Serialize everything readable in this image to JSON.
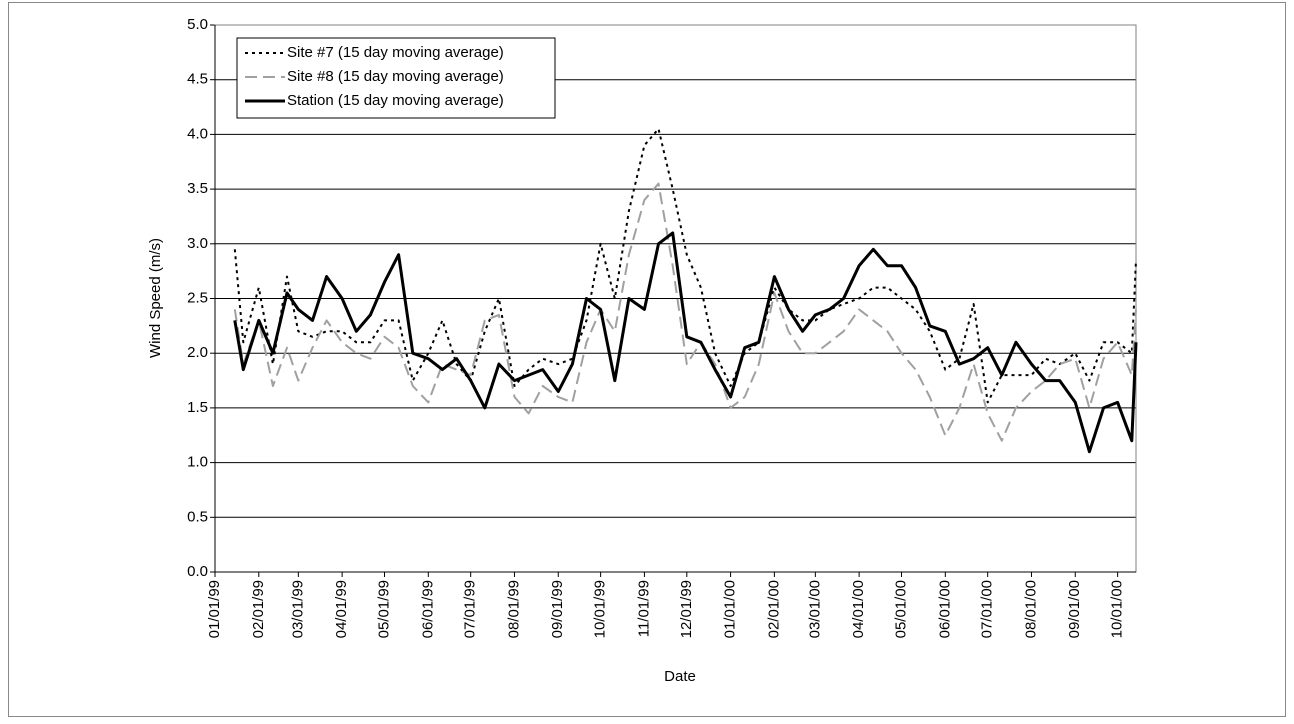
{
  "chart_data": {
    "type": "line",
    "x_label": "Date",
    "y_label": "Wind Speed (m/s)",
    "x": [
      "01/15/99",
      "01/21/99",
      "02/01/99",
      "02/11/99",
      "02/21/99",
      "03/01/99",
      "03/11/99",
      "03/21/99",
      "04/01/99",
      "04/11/99",
      "04/21/99",
      "05/01/99",
      "05/11/99",
      "05/21/99",
      "06/01/99",
      "06/11/99",
      "06/21/99",
      "07/01/99",
      "07/11/99",
      "07/21/99",
      "08/01/99",
      "08/11/99",
      "08/21/99",
      "09/01/99",
      "09/11/99",
      "09/21/99",
      "10/01/99",
      "10/11/99",
      "10/21/99",
      "11/01/99",
      "11/11/99",
      "11/21/99",
      "12/01/99",
      "12/11/99",
      "12/21/99",
      "01/01/00",
      "01/11/00",
      "01/21/00",
      "02/01/00",
      "02/11/00",
      "02/21/00",
      "03/01/00",
      "03/11/00",
      "03/21/00",
      "04/01/00",
      "04/11/00",
      "04/21/00",
      "05/01/00",
      "05/11/00",
      "05/21/00",
      "06/01/00",
      "06/11/00",
      "06/21/00",
      "07/01/00",
      "07/11/00",
      "07/21/00",
      "08/01/00",
      "08/11/00",
      "08/21/00",
      "09/01/00",
      "09/11/00",
      "09/21/00",
      "10/01/00",
      "10/11/00",
      "10/14/00"
    ],
    "series": [
      {
        "name": "Site #7 (15 day moving average)",
        "color": "#000000",
        "dash": "dotted",
        "values": [
          2.95,
          2.1,
          2.6,
          1.9,
          2.7,
          2.2,
          2.15,
          2.2,
          2.2,
          2.1,
          2.1,
          2.3,
          2.3,
          1.75,
          2.0,
          2.3,
          1.9,
          1.75,
          2.2,
          2.5,
          1.7,
          1.85,
          1.95,
          1.9,
          1.95,
          2.3,
          3.0,
          2.5,
          3.3,
          3.9,
          4.05,
          3.5,
          2.9,
          2.6,
          2.0,
          1.7,
          2.0,
          2.1,
          2.6,
          2.4,
          2.3,
          2.3,
          2.4,
          2.45,
          2.5,
          2.6,
          2.6,
          2.5,
          2.4,
          2.2,
          1.85,
          1.95,
          2.45,
          1.55,
          1.8,
          1.8,
          1.8,
          1.95,
          1.9,
          2.0,
          1.75,
          2.1,
          2.1,
          2.0,
          2.85
        ]
      },
      {
        "name": "Site #8 (15 day moving average)",
        "color": "#a0a0a0",
        "dash": "dashed",
        "values": [
          2.4,
          1.9,
          2.3,
          1.7,
          2.05,
          1.75,
          2.05,
          2.3,
          2.1,
          2.0,
          1.95,
          2.15,
          2.05,
          1.7,
          1.55,
          1.9,
          1.85,
          1.8,
          2.3,
          2.35,
          1.6,
          1.45,
          1.7,
          1.6,
          1.55,
          2.1,
          2.4,
          2.2,
          2.9,
          3.4,
          3.55,
          2.8,
          1.9,
          2.1,
          1.9,
          1.5,
          1.6,
          1.9,
          2.55,
          2.2,
          2.0,
          2.0,
          2.1,
          2.2,
          2.4,
          2.3,
          2.2,
          2.0,
          1.85,
          1.6,
          1.25,
          1.5,
          1.9,
          1.45,
          1.2,
          1.5,
          1.65,
          1.75,
          1.9,
          1.95,
          1.5,
          1.95,
          2.1,
          1.8,
          2.4
        ]
      },
      {
        "name": "Station (15 day moving average)",
        "color": "#000000",
        "dash": "solid",
        "values": [
          2.3,
          1.85,
          2.3,
          2.0,
          2.55,
          2.4,
          2.3,
          2.7,
          2.5,
          2.2,
          2.35,
          2.65,
          2.9,
          2.0,
          1.95,
          1.85,
          1.95,
          1.75,
          1.5,
          1.9,
          1.75,
          1.8,
          1.85,
          1.65,
          1.9,
          2.5,
          2.4,
          1.75,
          2.5,
          2.4,
          3.0,
          3.1,
          2.15,
          2.1,
          1.85,
          1.6,
          2.05,
          2.1,
          2.7,
          2.4,
          2.2,
          2.35,
          2.4,
          2.5,
          2.8,
          2.95,
          2.8,
          2.8,
          2.6,
          2.25,
          2.2,
          1.9,
          1.95,
          2.05,
          1.8,
          2.1,
          1.9,
          1.75,
          1.75,
          1.55,
          1.1,
          1.5,
          1.55,
          1.2,
          2.1
        ]
      }
    ],
    "xlim": [
      "01/01/99",
      "10/14/00"
    ],
    "xticks": [
      "01/01/99",
      "02/01/99",
      "03/01/99",
      "04/01/99",
      "05/01/99",
      "06/01/99",
      "07/01/99",
      "08/01/99",
      "09/01/99",
      "10/01/99",
      "11/01/99",
      "12/01/99",
      "01/01/00",
      "02/01/00",
      "03/01/00",
      "04/01/00",
      "05/01/00",
      "06/01/00",
      "07/01/00",
      "08/01/00",
      "09/01/00",
      "10/01/00"
    ],
    "ylim": [
      0,
      5
    ],
    "yticks": [
      {
        "value": 0,
        "label": "0.0"
      },
      0.5,
      {
        "value": 1,
        "label": "1.0"
      },
      1.5,
      {
        "value": 2,
        "label": "2.0"
      },
      2.5,
      {
        "value": 3,
        "label": "3.0"
      },
      3.5,
      {
        "value": 4,
        "label": "4.0"
      },
      4.5,
      {
        "value": 5,
        "label": "5.0"
      }
    ],
    "grid": true,
    "legend": "upper left"
  }
}
